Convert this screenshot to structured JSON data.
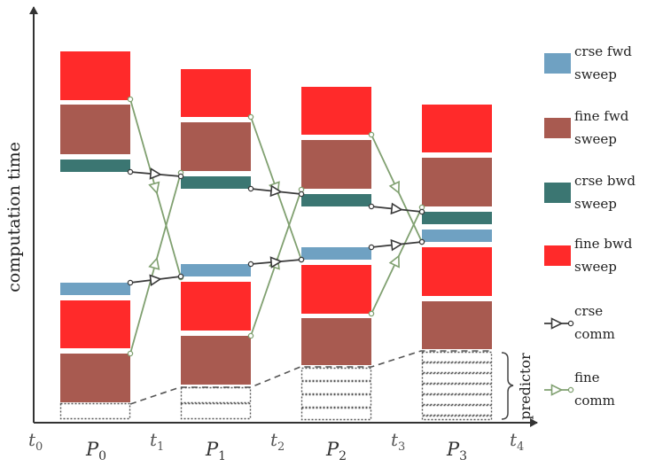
{
  "y_axis_label": "computation time",
  "x_labels": {
    "times": [
      {
        "base": "t",
        "sub": "0"
      },
      {
        "base": "t",
        "sub": "1"
      },
      {
        "base": "t",
        "sub": "2"
      },
      {
        "base": "t",
        "sub": "3"
      },
      {
        "base": "t",
        "sub": "4"
      }
    ],
    "processors": [
      {
        "base": "P",
        "sub": "0"
      },
      {
        "base": "P",
        "sub": "1"
      },
      {
        "base": "P",
        "sub": "2"
      },
      {
        "base": "P",
        "sub": "3"
      }
    ]
  },
  "predictor_label": "predictor",
  "legend": [
    {
      "line1": "crse fwd",
      "line2": "sweep",
      "kind": "box",
      "color": "#6fa1c2"
    },
    {
      "line1": "fine fwd",
      "line2": "sweep",
      "kind": "box",
      "color": "#a85a50"
    },
    {
      "line1": "crse bwd",
      "line2": "sweep",
      "kind": "box",
      "color": "#3b7672"
    },
    {
      "line1": "fine bwd",
      "line2": "sweep",
      "kind": "box",
      "color": "#ff2a2a"
    },
    {
      "line1": "crse",
      "line2": "comm",
      "kind": "arrow",
      "color": "#3a3a3a"
    },
    {
      "line1": "fine",
      "line2": "comm",
      "kind": "arrow",
      "color": "#80a070"
    }
  ],
  "colors": {
    "crse_fwd": "#6fa1c2",
    "fine_fwd": "#a85a50",
    "crse_bwd": "#3b7672",
    "fine_bwd": "#ff2a2a",
    "crse_comm": "#3a3a3a",
    "fine_comm": "#80a070",
    "axis": "#333333"
  }
}
